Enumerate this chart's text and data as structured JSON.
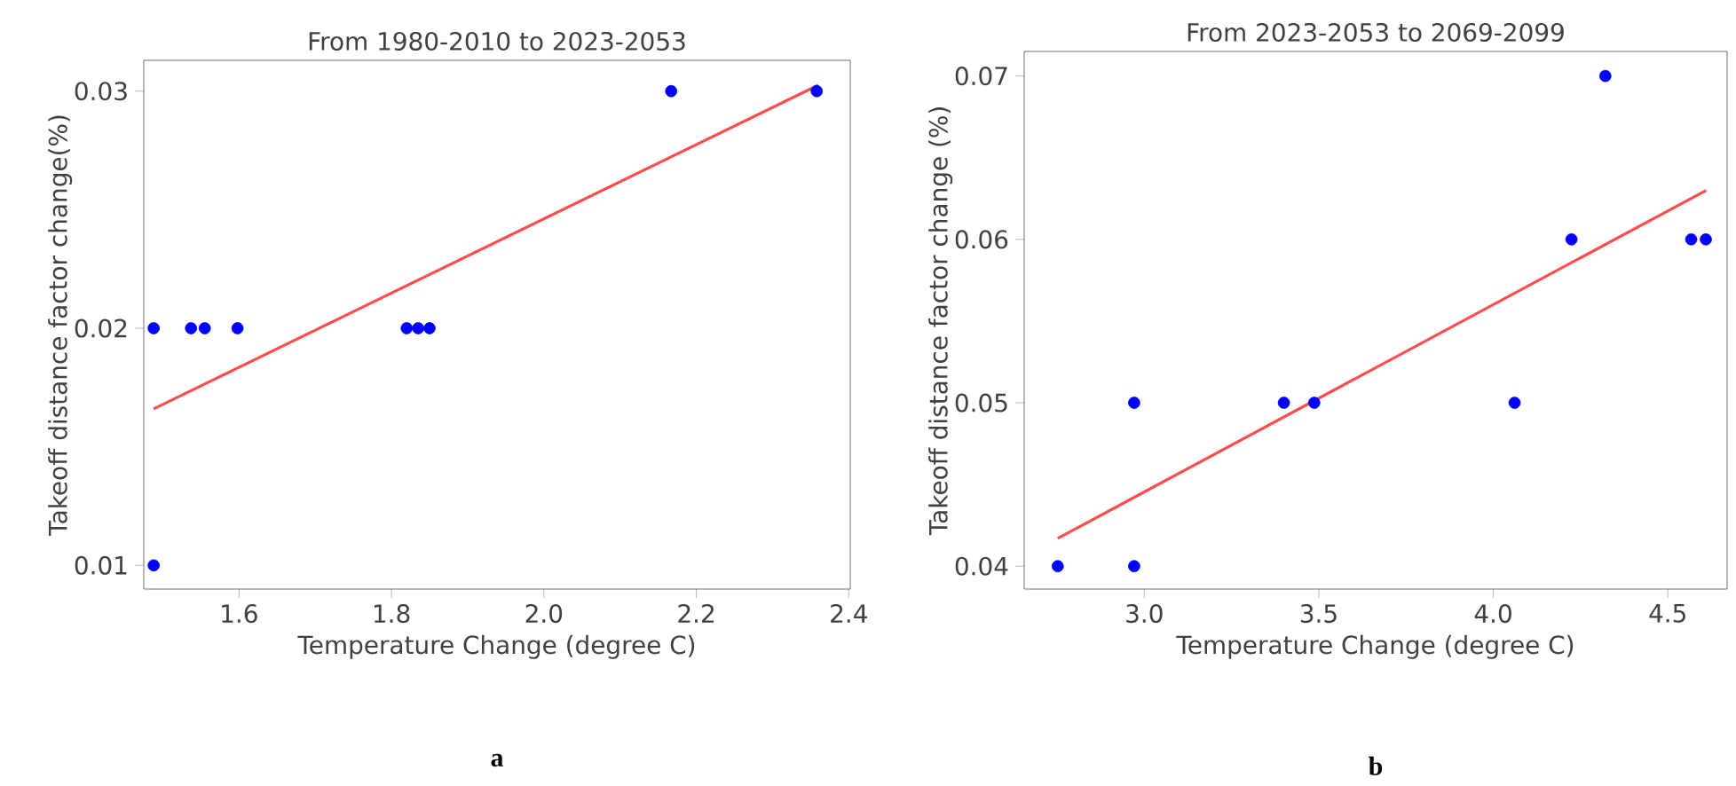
{
  "chart_data": [
    {
      "type": "scatter",
      "title": "From 1980-2010 to 2023-2053",
      "xlabel": "Temperature Change (degree C)",
      "ylabel": "Takeoff distance factor change(%)",
      "annotations": [
        "a"
      ],
      "xlim": [
        1.475,
        2.402
      ],
      "ylim": [
        0.009,
        0.0313
      ],
      "xticks": [
        1.6,
        1.8,
        {
          "value": 2.0,
          "label": "2.0"
        },
        2.2,
        2.4
      ],
      "yticks": [
        0.01,
        0.02,
        0.03
      ],
      "grid": false,
      "series": [
        {
          "color": "#0000ff",
          "marker": "circle",
          "x": [
            1.488,
            1.488,
            1.537,
            1.555,
            1.598,
            1.82,
            1.835,
            1.85,
            2.167,
            2.358
          ],
          "values": [
            0.02,
            0.01,
            0.02,
            0.02,
            0.02,
            0.02,
            0.02,
            0.02,
            0.03,
            0.03
          ]
        },
        {
          "type": "line",
          "color": "#ff4d4d",
          "marker": "none",
          "x": [
            1.488,
            2.36
          ],
          "values": [
            0.0166,
            0.03025
          ]
        }
      ]
    },
    {
      "type": "scatter",
      "title": "From 2023-2053 to 2069-2099",
      "xlabel": "Temperature Change (degree C)",
      "ylabel": "Takeoff distance factor change (%)",
      "annotations": [
        "b"
      ],
      "xlim": [
        2.656,
        4.67
      ],
      "ylim": [
        0.0386,
        0.0715
      ],
      "xticks": [
        {
          "value": 3.0,
          "label": "3.0"
        },
        3.5,
        {
          "value": 4.0,
          "label": "4.0"
        },
        4.5
      ],
      "yticks": [
        0.04,
        0.05,
        0.06,
        0.07
      ],
      "grid": false,
      "series": [
        {
          "color": "#0000ff",
          "marker": "circle",
          "x": [
            2.752,
            2.971,
            2.971,
            3.4,
            3.487,
            4.061,
            4.224,
            4.321,
            4.567,
            4.609
          ],
          "values": [
            0.04,
            0.05,
            0.04,
            0.05,
            0.05,
            0.05,
            0.06,
            0.07,
            0.06,
            0.06
          ]
        },
        {
          "type": "line",
          "color": "#ff4d4d",
          "marker": "none",
          "x": [
            2.752,
            4.61
          ],
          "values": [
            0.0417,
            0.063
          ]
        }
      ]
    }
  ]
}
